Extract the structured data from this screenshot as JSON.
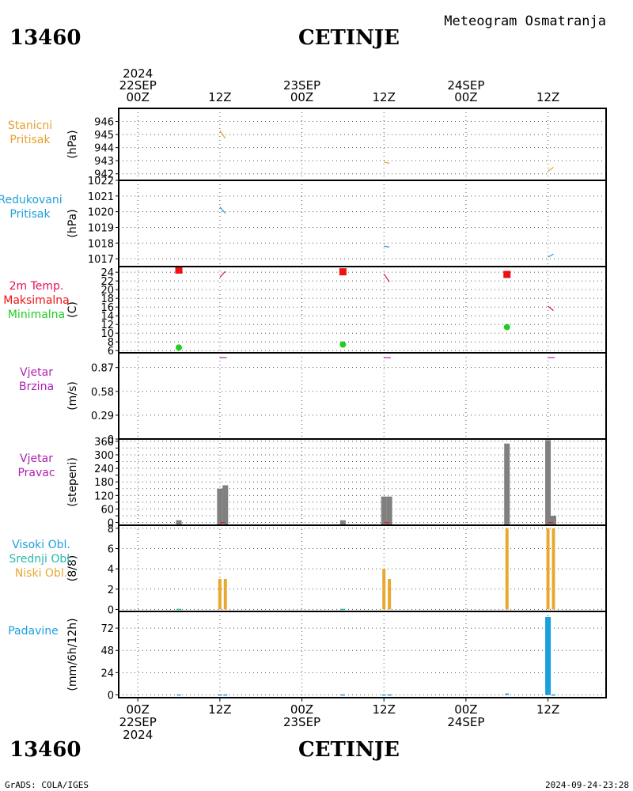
{
  "header": {
    "station_id": "13460",
    "station_name": "CETINJE",
    "subtitle": "Meteogram Osmatranja"
  },
  "footer": {
    "station_id": "13460",
    "station_name": "CETINJE",
    "credit": "GrADS: COLA/IGES",
    "timestamp": "2024-09-24-23:28"
  },
  "time_axis": {
    "top_ticks": [
      {
        "t": 0,
        "lines": [
          "2024",
          "22SEP",
          "00Z"
        ]
      },
      {
        "t": 12,
        "lines": [
          "12Z"
        ]
      },
      {
        "t": 24,
        "lines": [
          "23SEP",
          "00Z"
        ]
      },
      {
        "t": 36,
        "lines": [
          "12Z"
        ]
      },
      {
        "t": 48,
        "lines": [
          "24SEP",
          "00Z"
        ]
      },
      {
        "t": 60,
        "lines": [
          "12Z"
        ]
      }
    ],
    "bottom_ticks": [
      {
        "t": 0,
        "lines": [
          "00Z",
          "22SEP",
          "2024"
        ]
      },
      {
        "t": 12,
        "lines": [
          "12Z"
        ]
      },
      {
        "t": 24,
        "lines": [
          "00Z",
          "23SEP"
        ]
      },
      {
        "t": 36,
        "lines": [
          "12Z"
        ]
      },
      {
        "t": 48,
        "lines": [
          "00Z",
          "24SEP"
        ]
      },
      {
        "t": 60,
        "lines": [
          "12Z"
        ]
      }
    ]
  },
  "colors": {
    "pressure_station": "#e8a030",
    "pressure_reduced": "#1e9fd8",
    "temp_line": "#e0105a",
    "temp_max": "#ee1111",
    "temp_min": "#22cc22",
    "wind": "#b020b0",
    "wind_dir_bar": "#808080",
    "cloud_high": "#1e9fd8",
    "cloud_mid": "#22bbaa",
    "cloud_low": "#e8a830",
    "precip": "#1a9fdf",
    "frame": "#000000",
    "grid": "#555555"
  },
  "chart_data": [
    {
      "type": "line",
      "name": "station-pressure",
      "legend": [
        "Stanicni",
        "Pritisak"
      ],
      "ylabel": "(hPa)",
      "ylim": [
        941.5,
        947
      ],
      "yticks": [
        942,
        943,
        944,
        945,
        946
      ],
      "series": [
        {
          "segments": [
            [
              [
                12.0,
                945.3
              ],
              [
                12.8,
                944.7
              ]
            ],
            [
              [
                36.0,
                942.9
              ],
              [
                36.8,
                942.8
              ]
            ],
            [
              [
                60.0,
                942.2
              ],
              [
                60.8,
                942.5
              ]
            ]
          ]
        }
      ]
    },
    {
      "type": "line",
      "name": "reduced-pressure",
      "legend": [
        "Redukovani",
        "Pritisak"
      ],
      "ylabel": "(hPa)",
      "ylim": [
        1016.5,
        1022
      ],
      "yticks": [
        1017,
        1018,
        1019,
        1020,
        1021,
        1022
      ],
      "series": [
        {
          "segments": [
            [
              [
                12.0,
                1020.3
              ],
              [
                12.8,
                1019.9
              ]
            ],
            [
              [
                36.0,
                1017.8
              ],
              [
                36.8,
                1017.75
              ]
            ],
            [
              [
                60.0,
                1017.1
              ],
              [
                60.8,
                1017.3
              ]
            ]
          ]
        }
      ]
    },
    {
      "type": "scatter",
      "name": "temperature",
      "legend": [
        "2m Temp.",
        "Maksimalna",
        "Minimalna"
      ],
      "ylabel": "(C)",
      "ylim": [
        5.5,
        25.3
      ],
      "yticks": [
        6,
        8,
        10,
        12,
        14,
        16,
        18,
        20,
        22,
        24
      ],
      "temp_segments": [
        [
          [
            12.0,
            22.8
          ],
          [
            12.8,
            24.2
          ]
        ],
        [
          [
            36.0,
            23.6
          ],
          [
            36.8,
            21.8
          ]
        ],
        [
          [
            60.0,
            16.2
          ],
          [
            60.8,
            15.2
          ]
        ]
      ],
      "max_points": [
        [
          6.0,
          24.5
        ],
        [
          30.0,
          24.1
        ],
        [
          54.0,
          23.5
        ]
      ],
      "min_points": [
        [
          6.0,
          6.7
        ],
        [
          30.0,
          7.4
        ],
        [
          54.0,
          11.4
        ]
      ]
    },
    {
      "type": "line",
      "name": "wind-speed",
      "legend": [
        "Vjetar",
        "Brzina"
      ],
      "ylabel": "(m/s)",
      "ylim": [
        0,
        1.05
      ],
      "yticks": [
        0,
        0.29,
        0.58,
        0.87
      ],
      "series": [
        {
          "segments": [
            [
              [
                12.0,
                0.99
              ],
              [
                13.0,
                0.99
              ]
            ],
            [
              [
                36.0,
                0.99
              ],
              [
                37.0,
                0.99
              ]
            ],
            [
              [
                60.0,
                0.99
              ],
              [
                61.0,
                0.99
              ]
            ]
          ]
        }
      ]
    },
    {
      "type": "bar",
      "name": "wind-direction",
      "legend": [
        "Vjetar",
        "Pravac"
      ],
      "ylabel": "(stepeni)",
      "ylim": [
        -12,
        370
      ],
      "yticks": [
        0,
        30,
        60,
        90,
        120,
        150,
        180,
        210,
        240,
        270,
        300,
        330,
        360
      ],
      "ytick_labels": [
        "0",
        "",
        "60",
        "",
        "120",
        "",
        "180",
        "",
        "240",
        "",
        "300",
        "",
        "360"
      ],
      "bars": [
        [
          6.0,
          10
        ],
        [
          12.0,
          150
        ],
        [
          12.8,
          165
        ],
        [
          30.0,
          10
        ],
        [
          36.0,
          115
        ],
        [
          36.8,
          115
        ],
        [
          54.0,
          350
        ],
        [
          60.0,
          365
        ],
        [
          60.8,
          30
        ]
      ]
    },
    {
      "type": "bar",
      "name": "cloud-cover",
      "legend": [
        "Visoki Obl.",
        "Srednji Obl.",
        "Niski Obl."
      ],
      "ylabel": "(8/8)",
      "ylim": [
        -0.2,
        8.3
      ],
      "yticks": [
        0,
        2,
        4,
        6,
        8
      ],
      "bars_low": [
        [
          12.0,
          3
        ],
        [
          12.8,
          3
        ],
        [
          36.0,
          4
        ],
        [
          36.8,
          3
        ],
        [
          54.0,
          8
        ],
        [
          60.0,
          8
        ],
        [
          60.8,
          8
        ]
      ],
      "bars_high": [
        [
          6.0,
          0.1
        ],
        [
          30.0,
          0.1
        ]
      ]
    },
    {
      "type": "bar",
      "name": "precipitation",
      "legend": [
        "Padavine"
      ],
      "ylabel": "(mm/6h/12h)",
      "ylim": [
        -3,
        90
      ],
      "yticks": [
        0,
        24,
        48,
        72
      ],
      "bars": [
        [
          6.0,
          0.5
        ],
        [
          12.0,
          0.5
        ],
        [
          12.8,
          0.5
        ],
        [
          30.0,
          0.5
        ],
        [
          36.0,
          0.5
        ],
        [
          36.8,
          0.5
        ],
        [
          54.0,
          1.5
        ],
        [
          60.0,
          84
        ],
        [
          60.8,
          0.5
        ]
      ]
    }
  ]
}
